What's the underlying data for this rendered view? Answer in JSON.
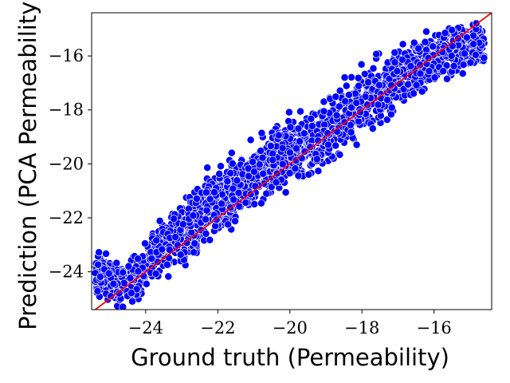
{
  "chart_data": {
    "type": "scatter",
    "xlabel": "Ground truth (Permeability)",
    "ylabel": "Prediction (PCA Permeability)",
    "xlim": [
      -25.5,
      -14.4
    ],
    "ylim": [
      -25.4,
      -14.4
    ],
    "xticks": [
      -24,
      -22,
      -20,
      -18,
      -16
    ],
    "yticks": [
      -24,
      -22,
      -20,
      -18,
      -16
    ],
    "xtick_labels": [
      "−24",
      "−22",
      "−20",
      "−18",
      "−16"
    ],
    "ytick_labels": [
      "−24",
      "−22",
      "−20",
      "−18",
      "−16"
    ],
    "grid": false,
    "legend": "none",
    "series": [
      {
        "marker_color": "#0000ff",
        "edge_color": "#ffffff",
        "x": [
          -25.4,
          -25.0,
          -24.6,
          -24.2,
          -23.8,
          -23.4,
          -23.0,
          -22.6,
          -22.2,
          -21.8,
          -21.4,
          -21.0,
          -20.6,
          -20.2,
          -19.8,
          -19.4,
          -19.0,
          -18.6,
          -18.2,
          -17.8,
          -17.4,
          -17.0,
          -16.6,
          -16.2,
          -15.8,
          -15.4,
          -15.0,
          -14.6
        ],
        "y": [
          -24.0,
          -24.3,
          -24.5,
          -24.2,
          -23.5,
          -23.0,
          -22.6,
          -22.1,
          -21.5,
          -21.2,
          -20.8,
          -20.4,
          -20.1,
          -19.8,
          -19.5,
          -19.2,
          -18.8,
          -18.4,
          -18.0,
          -17.6,
          -17.2,
          -16.8,
          -16.5,
          -16.2,
          -15.9,
          -15.7,
          -15.6,
          -15.7
        ]
      }
    ],
    "reference_line": {
      "color": "#ff0000",
      "x": [
        -25.5,
        -14.4
      ],
      "y": [
        -25.5,
        -14.4
      ]
    },
    "point_colors": {
      "fill": "#0000ff",
      "edge": "#ffffff",
      "line": "#ff0000"
    }
  }
}
